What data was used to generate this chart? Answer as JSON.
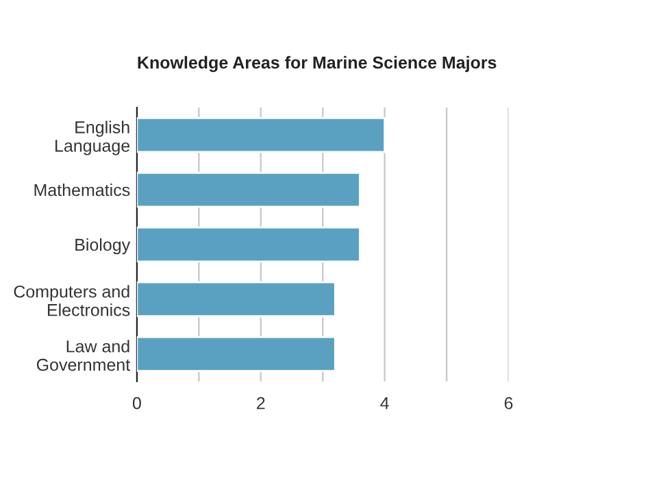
{
  "chart_data": {
    "type": "bar",
    "orientation": "horizontal",
    "title": "Knowledge Areas for Marine Science Majors",
    "categories": [
      "English\nLanguage",
      "Mathematics",
      "Biology",
      "Computers and\nElectronics",
      "Law and\nGovernment"
    ],
    "values": [
      4.0,
      3.6,
      3.6,
      3.2,
      3.2
    ],
    "color": "#5aa1c1",
    "xlim": [
      0,
      6
    ],
    "xticks": [
      0,
      {
        "value": 1,
        "label": null
      },
      2,
      {
        "value": 3,
        "label": null
      },
      4,
      {
        "value": 5,
        "label": null
      },
      6
    ],
    "grid": "x"
  }
}
